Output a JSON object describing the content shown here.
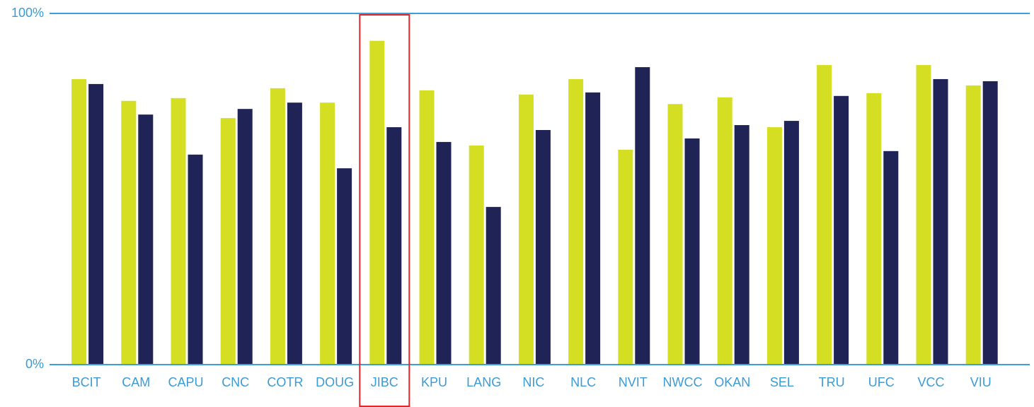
{
  "chart_data": {
    "type": "bar",
    "categories": [
      "BCIT",
      "CAM",
      "CAPU",
      "CNC",
      "COTR",
      "DOUG",
      "JIBC",
      "KPU",
      "LANG",
      "NIC",
      "NLC",
      "NVIT",
      "NWCC",
      "OKAN",
      "SEL",
      "TRU",
      "UFC",
      "VCC",
      "VIU"
    ],
    "series": [
      {
        "color": "#d4de23",
        "values": [
          81.3,
          75.1,
          75.9,
          70.2,
          78.7,
          74.6,
          92.2,
          78.1,
          62.4,
          76.9,
          81.3,
          61.2,
          74.2,
          76.1,
          67.6,
          85.3,
          77.3,
          85.3,
          79.5
        ]
      },
      {
        "color": "#1f2355",
        "values": [
          79.9,
          71.2,
          59.8,
          72.8,
          74.6,
          55.9,
          67.6,
          63.4,
          44.9,
          66.8,
          77.5,
          84.7,
          64.4,
          68.2,
          69.4,
          76.5,
          60.8,
          81.3,
          80.7
        ]
      }
    ],
    "ylim": [
      0,
      100
    ],
    "yticks": [
      {
        "value": 0,
        "label": "0%"
      },
      {
        "value": 100,
        "label": "100%"
      }
    ],
    "grid": true,
    "highlight": {
      "category_index": 6,
      "color": "#e3262e"
    }
  }
}
